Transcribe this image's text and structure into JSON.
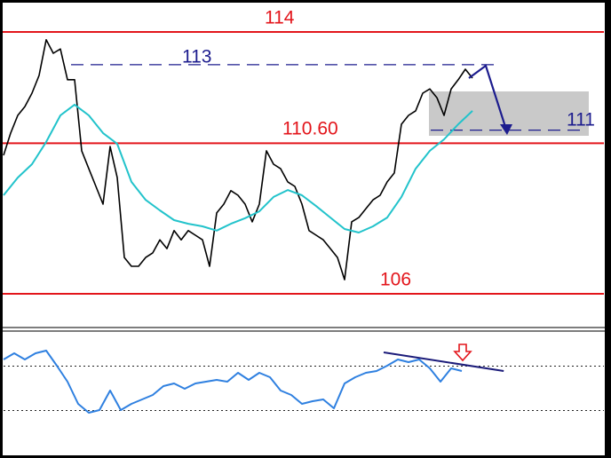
{
  "chart_data": [
    {
      "type": "line",
      "xlim": [
        0,
        85
      ],
      "ylim": [
        105,
        115
      ],
      "series": [
        {
          "name": "price",
          "color": "#000000",
          "x": [
            0,
            1,
            2,
            3,
            4,
            5,
            6,
            7,
            8,
            9,
            10,
            11,
            12,
            13,
            14,
            15,
            16,
            17,
            18,
            19,
            20,
            21,
            22,
            23,
            24,
            25,
            26,
            27,
            28,
            29,
            30,
            31,
            32,
            33,
            34,
            35,
            36,
            37,
            38,
            39,
            40,
            41,
            42,
            43,
            44,
            45,
            46,
            47,
            48,
            49,
            50,
            51,
            52,
            53,
            54,
            55,
            56,
            57,
            58,
            59,
            60,
            61,
            62,
            63,
            64,
            65,
            66
          ],
          "values": [
            110.23,
            110.91,
            111.45,
            111.72,
            112.13,
            112.67,
            113.76,
            113.35,
            113.48,
            112.54,
            112.54,
            110.37,
            109.82,
            109.28,
            108.74,
            110.5,
            109.55,
            107.11,
            106.84,
            106.84,
            107.11,
            107.25,
            107.65,
            107.38,
            107.93,
            107.65,
            107.93,
            107.79,
            107.65,
            106.84,
            108.47,
            108.74,
            109.15,
            109.01,
            108.74,
            108.2,
            108.74,
            110.37,
            109.96,
            109.82,
            109.42,
            109.28,
            108.74,
            107.93,
            107.79,
            107.65,
            107.38,
            107.11,
            106.43,
            108.2,
            108.33,
            108.6,
            108.87,
            109.01,
            109.42,
            109.69,
            111.18,
            111.45,
            111.59,
            112.13,
            112.26,
            111.99,
            111.45,
            112.26,
            112.54,
            112.86,
            112.59
          ]
        },
        {
          "name": "moving-average",
          "color": "#22c3cb",
          "x": [
            0,
            2,
            4,
            6,
            8,
            10,
            12,
            14,
            16,
            18,
            20,
            22,
            24,
            26,
            28,
            30,
            32,
            34,
            36,
            38,
            40,
            42,
            44,
            46,
            48,
            50,
            52,
            54,
            56,
            58,
            60,
            62,
            64,
            66
          ],
          "values": [
            109.01,
            109.55,
            109.96,
            110.64,
            111.45,
            111.78,
            111.45,
            110.91,
            110.58,
            109.42,
            108.87,
            108.55,
            108.25,
            108.14,
            108.06,
            107.93,
            108.14,
            108.31,
            108.52,
            108.96,
            109.17,
            109.01,
            108.68,
            108.33,
            107.98,
            107.87,
            108.06,
            108.33,
            108.96,
            109.82,
            110.37,
            110.72,
            111.18,
            111.59
          ]
        }
      ],
      "levels": [
        {
          "value": 114,
          "label": "114",
          "color": "#e3151b",
          "dashed": false
        },
        {
          "value": 113,
          "label": "113",
          "color": "#1c1c8e",
          "dashed": true
        },
        {
          "value": 110.6,
          "label": "110.60",
          "color": "#e3151b",
          "dashed": false
        },
        {
          "value": 111,
          "label": "111",
          "color": "#1c1c8e",
          "dashed": true
        },
        {
          "value": 106,
          "label": "106",
          "color": "#e3151b",
          "dashed": false
        }
      ]
    },
    {
      "type": "line",
      "xlim": [
        0,
        85
      ],
      "ylim": [
        0,
        100
      ],
      "levels": [
        70,
        30
      ],
      "series": [
        {
          "name": "oscillator",
          "color": "#2f80e0",
          "x": [
            0,
            1.5,
            3,
            4.5,
            6,
            7.5,
            9,
            10.5,
            12,
            13.5,
            15,
            16.5,
            18,
            19.5,
            21,
            22.5,
            24,
            25.5,
            27,
            28.5,
            30,
            31.5,
            33,
            34.5,
            36,
            37.5,
            39,
            40.5,
            42,
            43.5,
            45,
            46.5,
            48,
            49.5,
            51,
            52.5,
            54,
            55.5,
            57,
            58.5,
            60,
            61.5,
            63,
            64.5
          ],
          "values": [
            76,
            81.6,
            76,
            81.6,
            84,
            70.4,
            56,
            36,
            28,
            30.4,
            48,
            30.4,
            36,
            40,
            44,
            52,
            54.4,
            49.6,
            54.4,
            56,
            57.6,
            56,
            64,
            57.6,
            64,
            60,
            48,
            44,
            36,
            38.4,
            40,
            32,
            54.4,
            60,
            64,
            65.6,
            70.4,
            76,
            73.6,
            76,
            68,
            56,
            68,
            65.6
          ]
        },
        {
          "name": "trendline",
          "color": "#1c1c7a",
          "x": [
            53.5,
            70.4
          ],
          "values": [
            82.4,
            65.6
          ]
        }
      ]
    }
  ]
}
